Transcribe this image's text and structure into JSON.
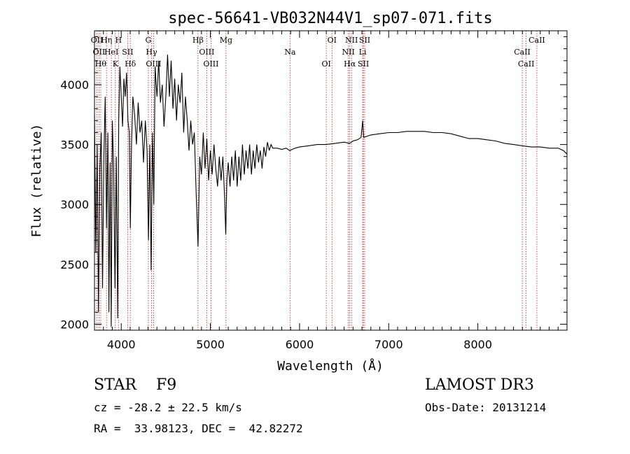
{
  "chart_data": {
    "type": "line",
    "title": "spec-56641-VB032N44V1_sp07-071.fits",
    "xlabel": "Wavelength (Å)",
    "ylabel": "Flux (relative)",
    "xlim": [
      3700,
      9000
    ],
    "ylim": [
      1950,
      4450
    ],
    "x_ticks": [
      4000,
      5000,
      6000,
      7000,
      8000
    ],
    "y_ticks": [
      2000,
      2500,
      3000,
      3500,
      4000
    ],
    "grid": false,
    "series": [
      {
        "name": "spectrum",
        "points": [
          [
            3700,
            3750
          ],
          [
            3715,
            2600
          ],
          [
            3730,
            3500
          ],
          [
            3745,
            2100
          ],
          [
            3760,
            3300
          ],
          [
            3775,
            3600
          ],
          [
            3790,
            2300
          ],
          [
            3805,
            3400
          ],
          [
            3820,
            3900
          ],
          [
            3835,
            2800
          ],
          [
            3850,
            3600
          ],
          [
            3862,
            2100
          ],
          [
            3875,
            3350
          ],
          [
            3888,
            1980
          ],
          [
            3900,
            3700
          ],
          [
            3915,
            3300
          ],
          [
            3930,
            2300
          ],
          [
            3945,
            3400
          ],
          [
            3960,
            2050
          ],
          [
            3972,
            3700
          ],
          [
            3985,
            4150
          ],
          [
            4000,
            3900
          ],
          [
            4015,
            3650
          ],
          [
            4030,
            4050
          ],
          [
            4045,
            3900
          ],
          [
            4060,
            4100
          ],
          [
            4075,
            3700
          ],
          [
            4090,
            3600
          ],
          [
            4102,
            2800
          ],
          [
            4115,
            3500
          ],
          [
            4130,
            3900
          ],
          [
            4150,
            3750
          ],
          [
            4170,
            3500
          ],
          [
            4190,
            3850
          ],
          [
            4210,
            3600
          ],
          [
            4230,
            3700
          ],
          [
            4250,
            3350
          ],
          [
            4270,
            3700
          ],
          [
            4290,
            3450
          ],
          [
            4305,
            2700
          ],
          [
            4320,
            3500
          ],
          [
            4335,
            2450
          ],
          [
            4350,
            3600
          ],
          [
            4365,
            3000
          ],
          [
            4380,
            4150
          ],
          [
            4400,
            3900
          ],
          [
            4420,
            4200
          ],
          [
            4440,
            3850
          ],
          [
            4460,
            4000
          ],
          [
            4480,
            3650
          ],
          [
            4500,
            3900
          ],
          [
            4520,
            4250
          ],
          [
            4540,
            3900
          ],
          [
            4560,
            4200
          ],
          [
            4580,
            3800
          ],
          [
            4600,
            4050
          ],
          [
            4620,
            3700
          ],
          [
            4640,
            4000
          ],
          [
            4660,
            3850
          ],
          [
            4680,
            4100
          ],
          [
            4700,
            3600
          ],
          [
            4720,
            3900
          ],
          [
            4740,
            3700
          ],
          [
            4760,
            3450
          ],
          [
            4780,
            3700
          ],
          [
            4800,
            3500
          ],
          [
            4820,
            3600
          ],
          [
            4840,
            3100
          ],
          [
            4861,
            2650
          ],
          [
            4880,
            3400
          ],
          [
            4900,
            3250
          ],
          [
            4920,
            3600
          ],
          [
            4940,
            3300
          ],
          [
            4960,
            3550
          ],
          [
            4980,
            3200
          ],
          [
            5000,
            3450
          ],
          [
            5020,
            3250
          ],
          [
            5040,
            3500
          ],
          [
            5060,
            3300
          ],
          [
            5080,
            3150
          ],
          [
            5100,
            3400
          ],
          [
            5120,
            3200
          ],
          [
            5140,
            3400
          ],
          [
            5160,
            3050
          ],
          [
            5172,
            2750
          ],
          [
            5185,
            3200
          ],
          [
            5200,
            3350
          ],
          [
            5220,
            3150
          ],
          [
            5240,
            3400
          ],
          [
            5260,
            3200
          ],
          [
            5280,
            3450
          ],
          [
            5300,
            3150
          ],
          [
            5320,
            3400
          ],
          [
            5340,
            3200
          ],
          [
            5360,
            3500
          ],
          [
            5380,
            3250
          ],
          [
            5400,
            3450
          ],
          [
            5420,
            3300
          ],
          [
            5440,
            3500
          ],
          [
            5460,
            3250
          ],
          [
            5480,
            3450
          ],
          [
            5500,
            3300
          ],
          [
            5520,
            3500
          ],
          [
            5540,
            3350
          ],
          [
            5560,
            3450
          ],
          [
            5580,
            3300
          ],
          [
            5600,
            3480
          ],
          [
            5620,
            3400
          ],
          [
            5640,
            3520
          ],
          [
            5660,
            3450
          ],
          [
            5680,
            3500
          ],
          [
            5700,
            3470
          ],
          [
            5750,
            3470
          ],
          [
            5800,
            3460
          ],
          [
            5850,
            3470
          ],
          [
            5890,
            3450
          ],
          [
            5950,
            3470
          ],
          [
            6000,
            3480
          ],
          [
            6100,
            3490
          ],
          [
            6200,
            3500
          ],
          [
            6300,
            3500
          ],
          [
            6400,
            3510
          ],
          [
            6500,
            3520
          ],
          [
            6562,
            3510
          ],
          [
            6600,
            3530
          ],
          [
            6650,
            3540
          ],
          [
            6690,
            3560
          ],
          [
            6708,
            3700
          ],
          [
            6720,
            3560
          ],
          [
            6800,
            3580
          ],
          [
            6900,
            3590
          ],
          [
            7000,
            3600
          ],
          [
            7100,
            3600
          ],
          [
            7200,
            3610
          ],
          [
            7300,
            3610
          ],
          [
            7400,
            3610
          ],
          [
            7500,
            3600
          ],
          [
            7600,
            3600
          ],
          [
            7700,
            3590
          ],
          [
            7800,
            3570
          ],
          [
            7900,
            3550
          ],
          [
            8000,
            3550
          ],
          [
            8100,
            3540
          ],
          [
            8200,
            3530
          ],
          [
            8300,
            3510
          ],
          [
            8400,
            3500
          ],
          [
            8500,
            3490
          ],
          [
            8600,
            3480
          ],
          [
            8700,
            3480
          ],
          [
            8800,
            3470
          ],
          [
            8900,
            3470
          ],
          [
            8960,
            3450
          ],
          [
            9000,
            3420
          ]
        ]
      }
    ],
    "lines": [
      {
        "wave": 3727,
        "label": "OII"
      },
      {
        "wave": 3750,
        "label": "OII"
      },
      {
        "wave": 3770,
        "label": "Hθ"
      },
      {
        "wave": 3835,
        "label": "Hη"
      },
      {
        "wave": 3889,
        "label": "HeI"
      },
      {
        "wave": 3934,
        "label": "K"
      },
      {
        "wave": 3969,
        "label": "H"
      },
      {
        "wave": 4072,
        "label": "SII"
      },
      {
        "wave": 4102,
        "label": "Hδ"
      },
      {
        "wave": 4304,
        "label": "G"
      },
      {
        "wave": 4340,
        "label": "Hγ"
      },
      {
        "wave": 4363,
        "label": "OIII"
      },
      {
        "wave": 4861,
        "label": "Hβ"
      },
      {
        "wave": 4959,
        "label": "OIII"
      },
      {
        "wave": 5007,
        "label": "OIII"
      },
      {
        "wave": 5175,
        "label": "Mg"
      },
      {
        "wave": 5893,
        "label": "Na"
      },
      {
        "wave": 6300,
        "label": "OI"
      },
      {
        "wave": 6364,
        "label": "OI"
      },
      {
        "wave": 6548,
        "label": "NII"
      },
      {
        "wave": 6563,
        "label": "Hα"
      },
      {
        "wave": 6583,
        "label": "NII"
      },
      {
        "wave": 6708,
        "label": "Li"
      },
      {
        "wave": 6716,
        "label": "SII"
      },
      {
        "wave": 6731,
        "label": "SII"
      },
      {
        "wave": 8498,
        "label": "CaII"
      },
      {
        "wave": 8542,
        "label": "CaII"
      },
      {
        "wave": 8662,
        "label": "CaII"
      }
    ]
  },
  "info": {
    "classification": "STAR    F9",
    "survey": "LAMOST DR3",
    "redshift": "cz = -28.2 ± 22.5 km/s",
    "obs_date": "Obs-Date: 20131214",
    "coords": "RA =  33.98123, DEC =  42.82272"
  }
}
